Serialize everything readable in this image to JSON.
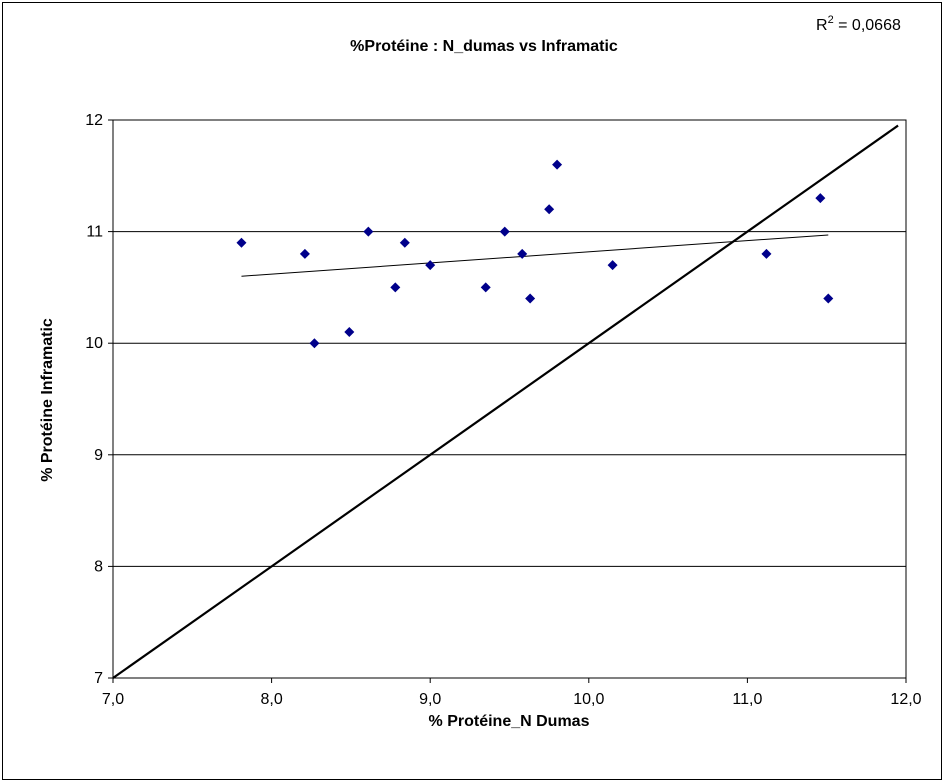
{
  "chart_data": {
    "type": "scatter",
    "title": "%Protéine : N_dumas vs Inframatic",
    "xlabel": "% Protéine_N Dumas",
    "ylabel": "% Protéine Inframatic",
    "xlim": [
      7.0,
      12.0
    ],
    "ylim": [
      7,
      12
    ],
    "x_ticks": [
      "7,0",
      "8,0",
      "9,0",
      "10,0",
      "11,0",
      "12,0"
    ],
    "y_ticks": [
      "7",
      "8",
      "9",
      "10",
      "11",
      "12"
    ],
    "grid": "horizontal",
    "annotation": {
      "r2_base": "R",
      "r2_exp": "2",
      "r2_value": " = 0,0668"
    },
    "colors": {
      "points": "#00008b",
      "lines": "#000000"
    },
    "series": [
      {
        "marker": "diamond",
        "x": [
          7.81,
          8.21,
          8.27,
          8.49,
          8.61,
          8.78,
          8.84,
          9.0,
          9.35,
          9.47,
          9.58,
          9.63,
          9.75,
          9.8,
          10.15,
          11.12,
          11.46,
          11.51
        ],
        "y": [
          10.9,
          10.8,
          10.0,
          10.1,
          11.0,
          10.5,
          10.9,
          10.7,
          10.5,
          11.0,
          10.8,
          10.4,
          11.2,
          11.6,
          10.7,
          10.8,
          11.3,
          10.4
        ]
      }
    ],
    "lines": [
      {
        "kind": "trendline",
        "x": [
          7.81,
          11.51
        ],
        "y": [
          10.6,
          10.97
        ]
      },
      {
        "kind": "identity",
        "x": [
          7.0,
          11.95
        ],
        "y": [
          7.0,
          11.95
        ]
      }
    ]
  }
}
